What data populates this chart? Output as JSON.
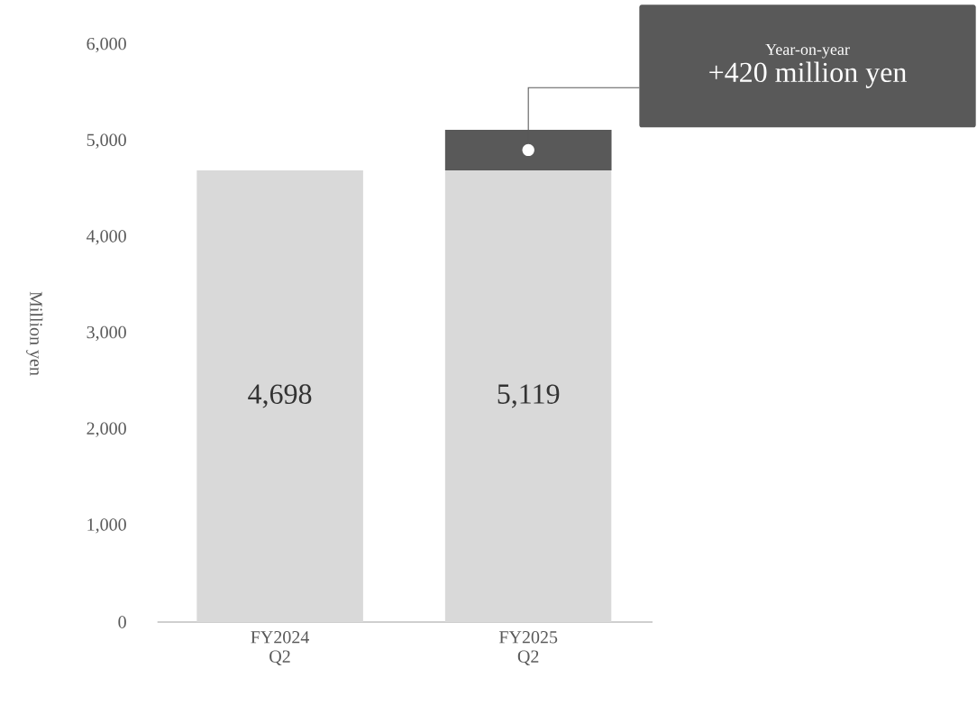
{
  "chart_data": {
    "type": "bar",
    "stacked": true,
    "ylabel": "Million yen",
    "categories": [
      "FY2024 Q2",
      "FY2025 Q2"
    ],
    "series": [
      {
        "color": "#d9d9d9",
        "values": [
          4698,
          4698
        ]
      },
      {
        "color": "#595959",
        "values": [
          null,
          421
        ]
      }
    ],
    "totals": [
      "4,698",
      "5,119"
    ],
    "ylim": [
      0,
      6000
    ],
    "yticks": [
      {
        "value": 0,
        "label": "0"
      },
      {
        "value": 1000,
        "label": "1,000"
      },
      {
        "value": 2000,
        "label": "2,000"
      },
      {
        "value": 3000,
        "label": "3,000"
      },
      {
        "value": 4000,
        "label": "4,000"
      },
      {
        "value": 5000,
        "label": "5,000"
      },
      {
        "value": 6000,
        "label": "6,000"
      }
    ],
    "annotations": [
      "Year-on-year",
      "+420 million yen"
    ]
  }
}
